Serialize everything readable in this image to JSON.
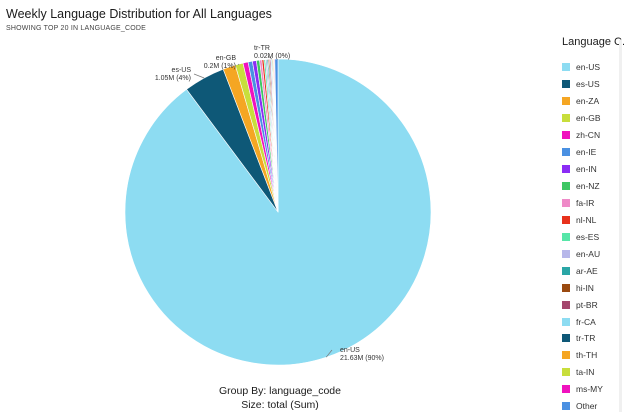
{
  "header": {
    "title": "Weekly Language Distribution for All Languages",
    "subtitle": "SHOWING TOP 20 IN LANGUAGE_CODE"
  },
  "legend_title": "Language C...",
  "footer": {
    "group_by": "Group By: language_code",
    "size": "Size: total (Sum)"
  },
  "chart_data": {
    "type": "pie",
    "title": "Weekly Language Distribution for All Languages",
    "legend_position": "right",
    "slices": [
      {
        "label": "en-US",
        "value": 21.63,
        "color": "#8ddcf2"
      },
      {
        "label": "es-US",
        "value": 1.05,
        "color": "#0e5877"
      },
      {
        "label": "en-ZA",
        "value": 0.32,
        "color": "#f5a623"
      },
      {
        "label": "en-GB",
        "value": 0.2,
        "color": "#c8de3c"
      },
      {
        "label": "zh-CN",
        "value": 0.13,
        "color": "#f012be"
      },
      {
        "label": "en-IE",
        "value": 0.11,
        "color": "#4a90e2"
      },
      {
        "label": "en-IN",
        "value": 0.1,
        "color": "#8b2cf5"
      },
      {
        "label": "en-NZ",
        "value": 0.08,
        "color": "#3ec764"
      },
      {
        "label": "fa-IR",
        "value": 0.06,
        "color": "#ef8ac8"
      },
      {
        "label": "nl-NL",
        "value": 0.05,
        "color": "#e8321c"
      },
      {
        "label": "es-ES",
        "value": 0.04,
        "color": "#57e6a8"
      },
      {
        "label": "en-AU",
        "value": 0.04,
        "color": "#b7b7ea"
      },
      {
        "label": "ar-AE",
        "value": 0.03,
        "color": "#2aa6a6"
      },
      {
        "label": "hi-IN",
        "value": 0.03,
        "color": "#9a4a10"
      },
      {
        "label": "pt-BR",
        "value": 0.03,
        "color": "#a4476d"
      },
      {
        "label": "fr-CA",
        "value": 0.025,
        "color": "#8ddcf2"
      },
      {
        "label": "tr-TR",
        "value": 0.02,
        "color": "#0e5877"
      },
      {
        "label": "th-TH",
        "value": 0.02,
        "color": "#f5a623"
      },
      {
        "label": "ta-IN",
        "value": 0.02,
        "color": "#c8de3c"
      },
      {
        "label": "ms-MY",
        "value": 0.02,
        "color": "#f012be"
      },
      {
        "label": "Other",
        "value": 0.08,
        "color": "#4a90e2"
      }
    ],
    "callouts": [
      {
        "label": "en-US",
        "value_text": "21.63M (90%)"
      },
      {
        "label": "es-US",
        "value_text": "1.05M (4%)"
      },
      {
        "label": "en-GB",
        "value_text": "0.2M (1%)"
      },
      {
        "label": "tr-TR",
        "value_text": "0.02M (0%)"
      }
    ]
  }
}
